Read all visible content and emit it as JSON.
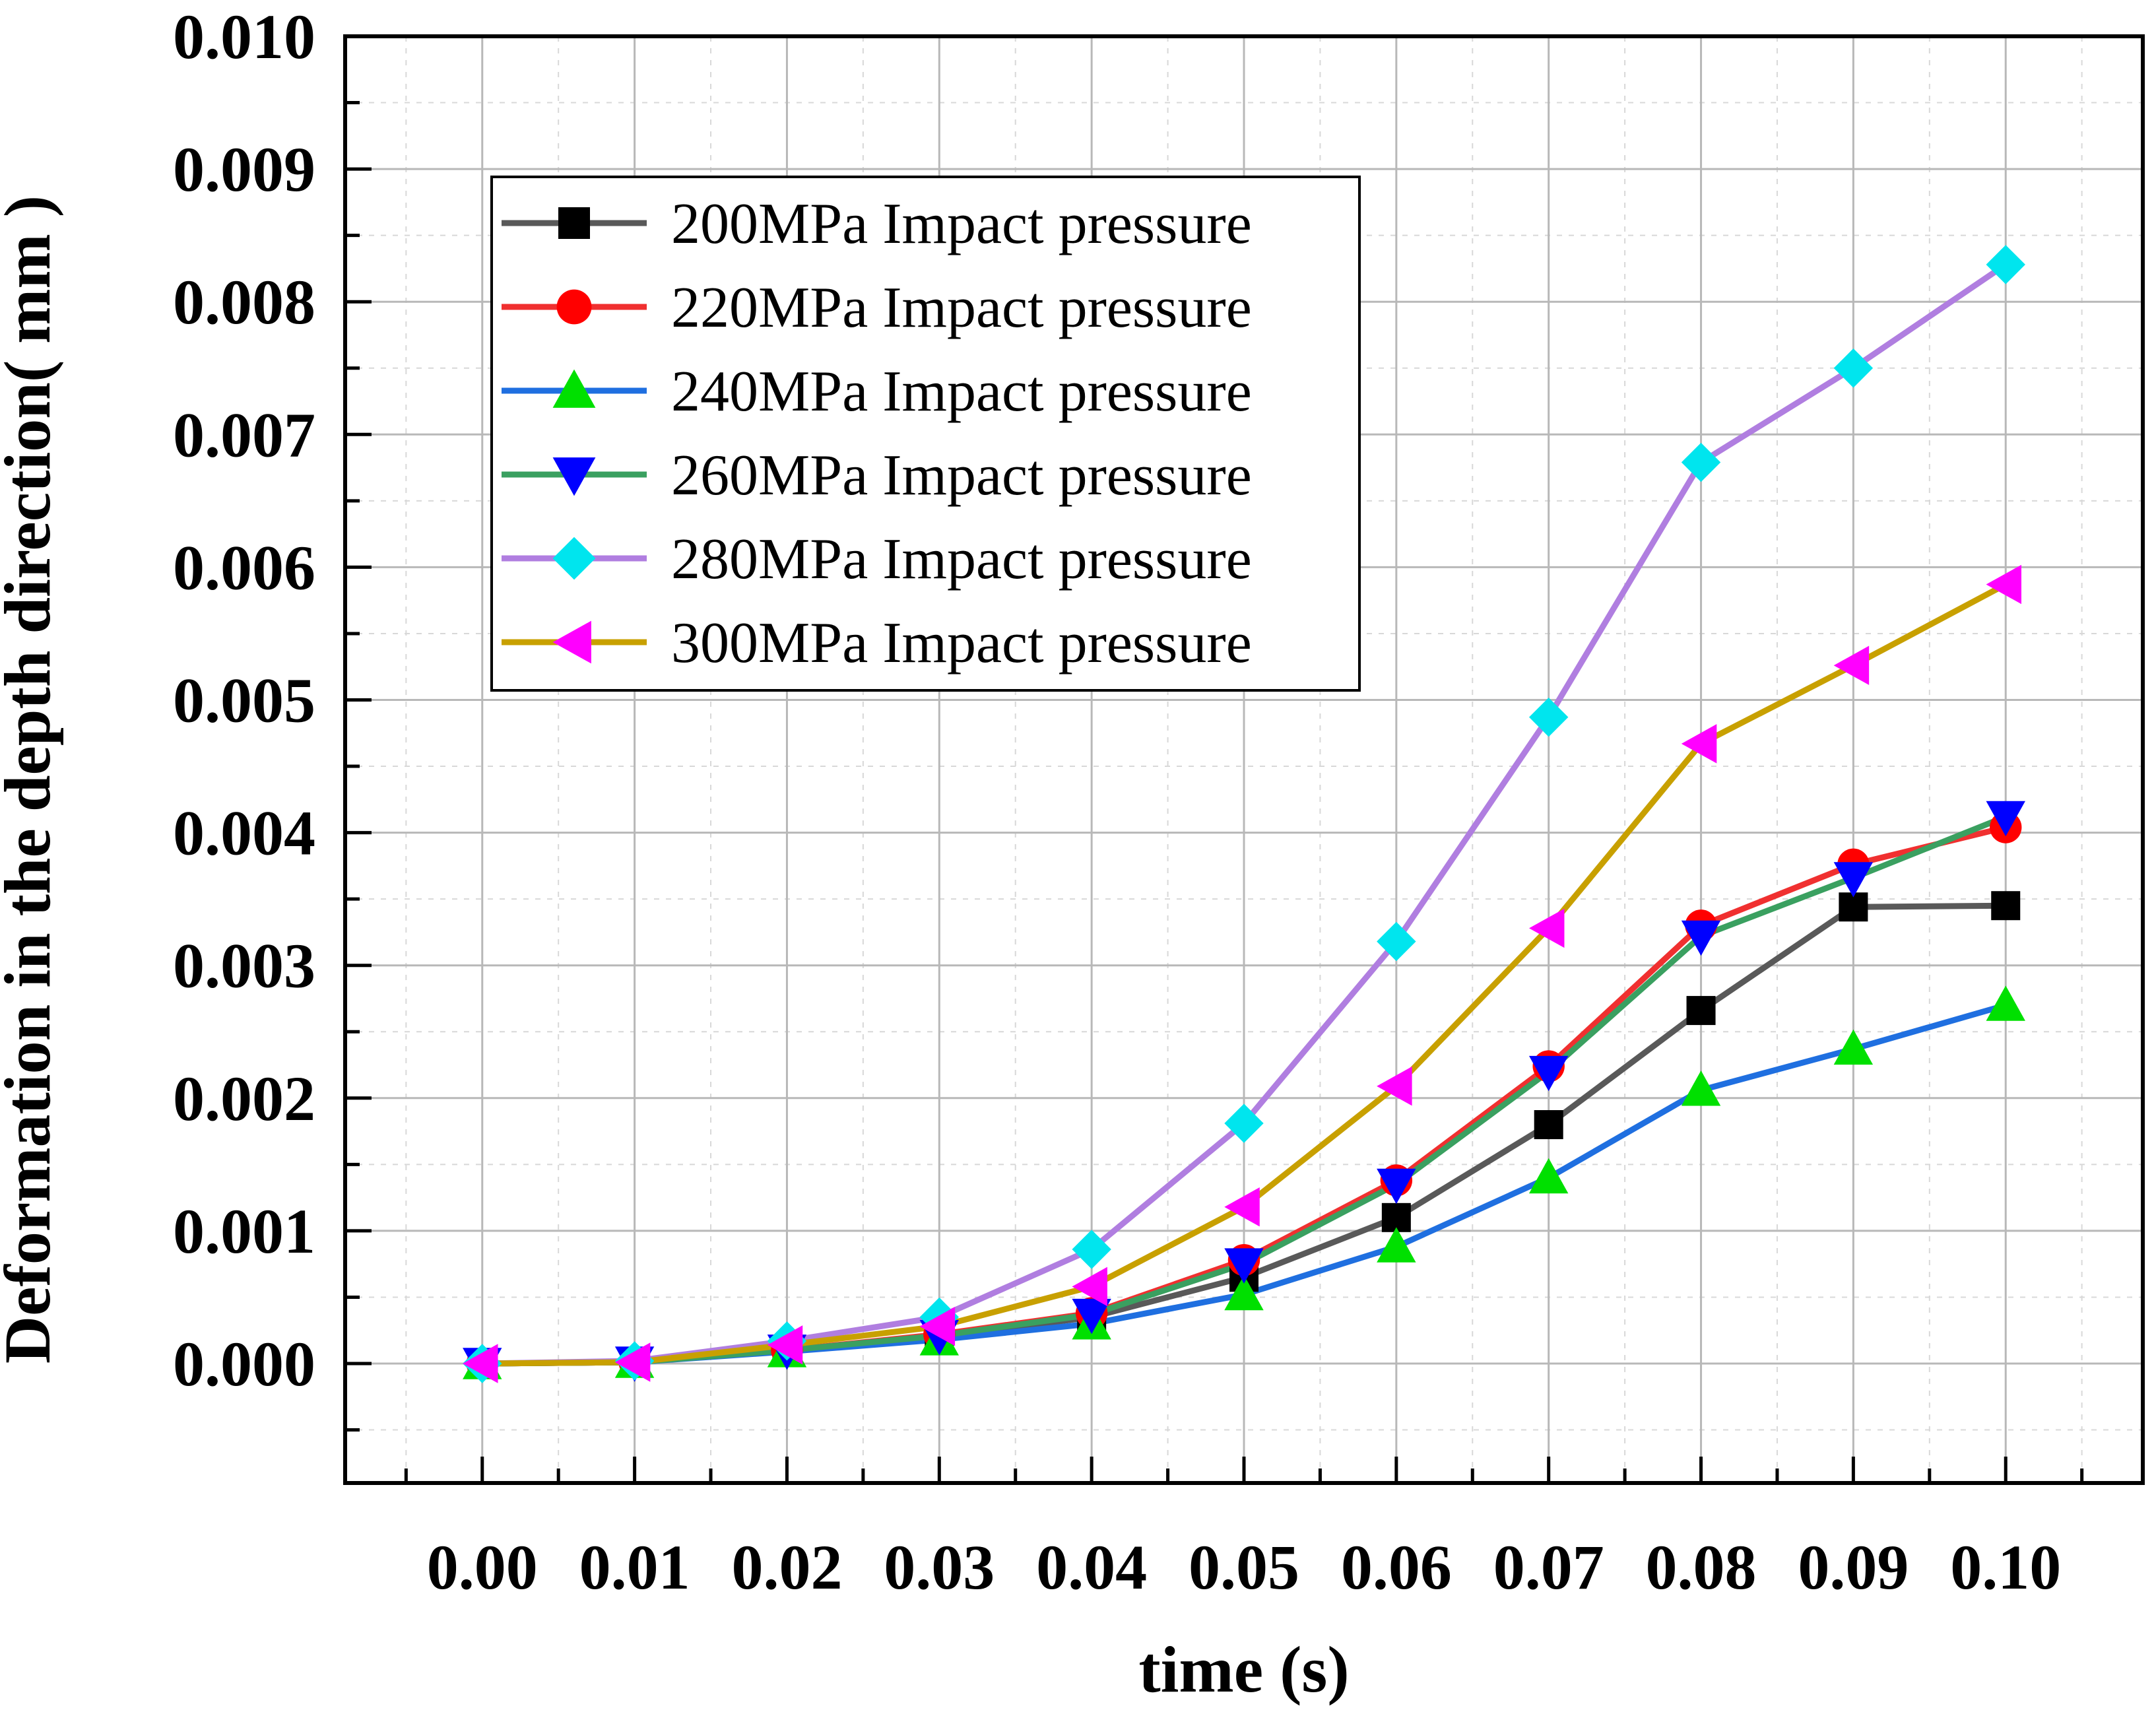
{
  "chart_data": {
    "type": "line",
    "title": "",
    "xlabel": "time (s)",
    "ylabel": "Deformation in the depth direction( mm )",
    "xlim": [
      -0.009,
      0.109
    ],
    "ylim": [
      -0.0009,
      0.01
    ],
    "xticks": [
      "0.00",
      "0.01",
      "0.02",
      "0.03",
      "0.04",
      "0.05",
      "0.06",
      "0.07",
      "0.08",
      "0.09",
      "0.10"
    ],
    "yticks": [
      "0.000",
      "0.001",
      "0.002",
      "0.003",
      "0.004",
      "0.005",
      "0.006",
      "0.007",
      "0.008",
      "0.009",
      "0.010"
    ],
    "grid": true,
    "legend_position": "top-left",
    "x": [
      0.0,
      0.01,
      0.02,
      0.03,
      0.04,
      0.05,
      0.06,
      0.07,
      0.08,
      0.09,
      0.1
    ],
    "series": [
      {
        "name": "200MPa Impact pressure",
        "line_color": "#595959",
        "marker_color": "#000000",
        "marker": "square",
        "values": [
          0.0,
          1e-05,
          0.0001,
          0.0002,
          0.00035,
          0.00065,
          0.0011,
          0.0018,
          0.00266,
          0.00344,
          0.00345
        ]
      },
      {
        "name": "220MPa Impact pressure",
        "line_color": "#f03030",
        "marker_color": "#ff0000",
        "marker": "circle",
        "values": [
          0.0,
          1e-05,
          0.0001,
          0.00022,
          0.00038,
          0.00078,
          0.00138,
          0.00224,
          0.0033,
          0.00376,
          0.00404
        ]
      },
      {
        "name": "240MPa Impact pressure",
        "line_color": "#1f6fe0",
        "marker_color": "#00e000",
        "marker": "triangle-up",
        "values": [
          0.0,
          1e-05,
          9e-05,
          0.00018,
          0.0003,
          0.00052,
          0.00088,
          0.0014,
          0.00206,
          0.00237,
          0.0027
        ]
      },
      {
        "name": "260MPa Impact pressure",
        "line_color": "#3aa060",
        "marker_color": "#0000ff",
        "marker": "triangle-down",
        "values": [
          0.0,
          1e-05,
          0.0001,
          0.00021,
          0.00037,
          0.00075,
          0.00135,
          0.0022,
          0.00322,
          0.00366,
          0.00412
        ]
      },
      {
        "name": "280MPa Impact pressure",
        "line_color": "#b07ee0",
        "marker_color": "#00e5ee",
        "marker": "diamond",
        "values": [
          0.0,
          2e-05,
          0.00017,
          0.00035,
          0.00086,
          0.00181,
          0.00318,
          0.00487,
          0.00679,
          0.0075,
          0.00828
        ]
      },
      {
        "name": "300MPa Impact pressure",
        "line_color": "#c8a000",
        "marker_color": "#ff00ff",
        "marker": "triangle-left",
        "values": [
          0.0,
          1e-05,
          0.00014,
          0.00028,
          0.00058,
          0.00118,
          0.00209,
          0.00328,
          0.00467,
          0.00526,
          0.00587
        ]
      }
    ]
  }
}
